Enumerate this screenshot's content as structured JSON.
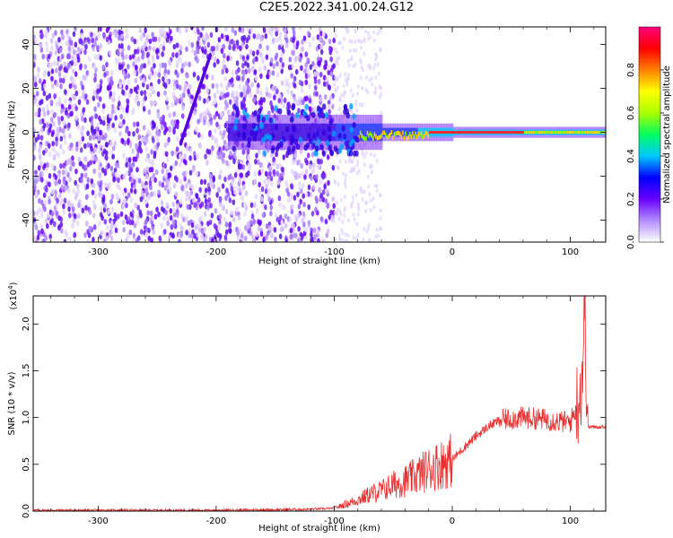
{
  "title": "C2E5.2022.341.00.24.G12",
  "chart_data": [
    {
      "type": "heatmap",
      "xlabel": "Height of straight line (km)",
      "ylabel": "Frequency (Hz)",
      "xlim": [
        -355,
        130
      ],
      "ylim": [
        -50,
        48
      ],
      "x_ticks": [
        -300,
        -200,
        -100,
        0,
        100
      ],
      "y_ticks": [
        -40,
        -20,
        0,
        20,
        40
      ],
      "colorbar": {
        "label": "Normalized spectral amplitude",
        "range": [
          0,
          1
        ],
        "ticks": [
          "0.0",
          "0.2",
          "0.4",
          "0.6",
          "0.8"
        ],
        "colors": [
          "#ffffff",
          "#b38cff",
          "#6a00ff",
          "#0000ff",
          "#00c8ff",
          "#00ff60",
          "#aaff00",
          "#ffff00",
          "#ff8000",
          "#ff0000",
          "#ff0080"
        ]
      },
      "features": {
        "noise_region_x": [
          -355,
          -100
        ],
        "signal_frequency_hz": 0
      }
    },
    {
      "type": "line",
      "xlabel": "Height of straight line (km)",
      "ylabel": "SNR (10 * v/v)",
      "y_scale_label": "(x10",
      "y_scale_exponent": "4",
      "y_scale_close": ")",
      "xlim": [
        -355,
        130
      ],
      "ylim": [
        0,
        2.3
      ],
      "x_ticks": [
        -300,
        -200,
        -100,
        0,
        100
      ],
      "y_ticks": [
        "0.0",
        "0.5",
        "1.0",
        "1.5",
        "2.0"
      ],
      "line_color": "#e83030",
      "series": [
        {
          "x": [
            -355,
            -300,
            -200,
            -150,
            -120,
            -100,
            -80,
            -70,
            -60,
            -50,
            -40,
            -30,
            -20,
            -10,
            0,
            10,
            20,
            30,
            40,
            50,
            60,
            70,
            80,
            90,
            100,
            105,
            110,
            112,
            115,
            120,
            130
          ],
          "y": [
            0.01,
            0.01,
            0.01,
            0.015,
            0.02,
            0.03,
            0.12,
            0.18,
            0.22,
            0.28,
            0.32,
            0.38,
            0.45,
            0.5,
            0.55,
            0.68,
            0.8,
            0.9,
            0.97,
            0.99,
            1.0,
            0.99,
            0.98,
            0.96,
            0.95,
            1.1,
            1.4,
            2.2,
            0.9,
            0.9,
            0.9
          ]
        }
      ]
    }
  ]
}
